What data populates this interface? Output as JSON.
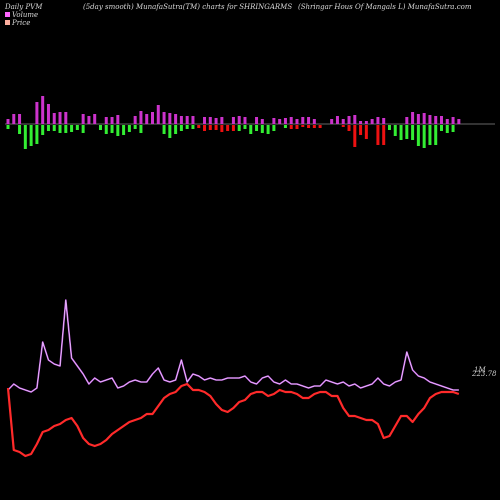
{
  "header": {
    "left": "Daily PVM",
    "middle": "(5day smooth) MunafaSutra(TM) charts for SHRINGARMS",
    "right": "(Shringar Hous  Of Mangals L) MunafaSutra.com"
  },
  "legend": [
    {
      "label": "Volume",
      "color": "#ff66ff"
    },
    {
      "label": "Price",
      "color": "#ffb0a0"
    }
  ],
  "colors": {
    "background": "#000000",
    "up_bar": "#cc33cc",
    "down_green": "#33ee33",
    "down_red": "#ee1111",
    "volume_line": "#cc66ee",
    "price_line": "#ff2a2a",
    "axis_line": "#888888"
  },
  "chart_data": [
    {
      "type": "bar",
      "name": "pvm-bars",
      "x": [
        1,
        2,
        3,
        4,
        5,
        6,
        7,
        8,
        9,
        10,
        11,
        12,
        13,
        14,
        15,
        16,
        17,
        18,
        19,
        20,
        21,
        22,
        23,
        24,
        25,
        26,
        27,
        28,
        29,
        30,
        31,
        32,
        33,
        34,
        35,
        36,
        37,
        38,
        39,
        40,
        41,
        42,
        43,
        44,
        45,
        46,
        47,
        48,
        49,
        50,
        51,
        52,
        53,
        54,
        55,
        56,
        57,
        58,
        59,
        60,
        61,
        62,
        63,
        64,
        65,
        66,
        67,
        68,
        69,
        70,
        71,
        72,
        73,
        74,
        75,
        76,
        77,
        78,
        79
      ],
      "up": [
        5,
        10,
        10,
        0,
        0,
        22,
        28,
        20,
        11,
        12,
        12,
        0,
        0,
        10,
        8,
        10,
        0,
        7,
        7,
        9,
        0,
        0,
        8,
        13,
        10,
        12,
        19,
        12,
        11,
        10,
        8,
        8,
        8,
        0,
        7,
        7,
        6,
        7,
        0,
        7,
        8,
        7,
        0,
        7,
        5,
        0,
        6,
        5,
        6,
        7,
        5,
        7,
        7,
        5,
        0,
        0,
        5,
        8,
        5,
        8,
        9,
        3,
        3,
        5,
        7,
        6,
        0,
        0,
        0,
        7,
        12,
        10,
        11,
        9,
        8,
        8,
        5,
        7,
        5
      ],
      "down": [
        4,
        0,
        9,
        24,
        21,
        19,
        10,
        6,
        6,
        8,
        8,
        7,
        5,
        8,
        0,
        0,
        5,
        9,
        8,
        11,
        10,
        7,
        4,
        8,
        0,
        0,
        0,
        9,
        13,
        9,
        6,
        4,
        4,
        3,
        6,
        5,
        5,
        7,
        6,
        6,
        6,
        4,
        9,
        6,
        8,
        9,
        6,
        0,
        3,
        4,
        4,
        2,
        3,
        3,
        3,
        0,
        0,
        0,
        2,
        6,
        22,
        10,
        14,
        0,
        20,
        20,
        5,
        11,
        15,
        14,
        15,
        21,
        23,
        20,
        20,
        6,
        8,
        7,
        0
      ],
      "down_color": [
        "green",
        "green",
        "green",
        "green",
        "green",
        "green",
        "green",
        "green",
        "green",
        "green",
        "green",
        "green",
        "green",
        "green",
        "green",
        "green",
        "green",
        "green",
        "green",
        "green",
        "green",
        "green",
        "green",
        "green",
        "green",
        "green",
        "green",
        "green",
        "green",
        "green",
        "green",
        "green",
        "green",
        "red",
        "red",
        "red",
        "red",
        "red",
        "red",
        "red",
        "green",
        "green",
        "green",
        "green",
        "green",
        "green",
        "green",
        "green",
        "green",
        "red",
        "red",
        "red",
        "red",
        "red",
        "red",
        "red",
        "red",
        "red",
        "red",
        "red",
        "red",
        "red",
        "red",
        "red",
        "red",
        "red",
        "green",
        "green",
        "green",
        "green",
        "green",
        "green",
        "green",
        "green",
        "green",
        "green",
        "green",
        "green",
        "green"
      ]
    },
    {
      "type": "line",
      "series": [
        {
          "name": "Volume",
          "x": [
            1,
            2,
            3,
            4,
            5,
            6,
            7,
            8,
            9,
            10,
            11,
            12,
            13,
            14,
            15,
            16,
            17,
            18,
            19,
            20,
            21,
            22,
            23,
            24,
            25,
            26,
            27,
            28,
            29,
            30,
            31,
            32,
            33,
            34,
            35,
            36,
            37,
            38,
            39,
            40,
            41,
            42,
            43,
            44,
            45,
            46,
            47,
            48,
            49,
            50,
            51,
            52,
            53,
            54,
            55,
            56,
            57,
            58,
            59,
            60,
            61,
            62,
            63,
            64,
            65,
            66,
            67,
            68,
            69,
            70,
            71,
            72,
            73,
            74,
            75,
            76,
            77,
            78,
            79
          ],
          "values": [
            0.4,
            0.43,
            0.41,
            0.4,
            0.39,
            0.41,
            0.64,
            0.55,
            0.53,
            0.52,
            0.85,
            0.56,
            0.52,
            0.48,
            0.43,
            0.46,
            0.44,
            0.45,
            0.46,
            0.41,
            0.42,
            0.44,
            0.45,
            0.44,
            0.44,
            0.48,
            0.51,
            0.45,
            0.44,
            0.45,
            0.55,
            0.44,
            0.48,
            0.47,
            0.45,
            0.46,
            0.45,
            0.45,
            0.46,
            0.46,
            0.46,
            0.47,
            0.44,
            0.43,
            0.46,
            0.47,
            0.44,
            0.43,
            0.45,
            0.43,
            0.43,
            0.42,
            0.41,
            0.42,
            0.42,
            0.45,
            0.44,
            0.43,
            0.44,
            0.42,
            0.43,
            0.41,
            0.42,
            0.43,
            0.46,
            0.43,
            0.42,
            0.44,
            0.45,
            0.59,
            0.5,
            0.47,
            0.46,
            0.44,
            0.43,
            0.42,
            0.41,
            0.4,
            0.4
          ]
        },
        {
          "name": "Price",
          "x": [
            1,
            2,
            3,
            4,
            5,
            6,
            7,
            8,
            9,
            10,
            11,
            12,
            13,
            14,
            15,
            16,
            17,
            18,
            19,
            20,
            21,
            22,
            23,
            24,
            25,
            26,
            27,
            28,
            29,
            30,
            31,
            32,
            33,
            34,
            35,
            36,
            37,
            38,
            39,
            40,
            41,
            42,
            43,
            44,
            45,
            46,
            47,
            48,
            49,
            50,
            51,
            52,
            53,
            54,
            55,
            56,
            57,
            58,
            59,
            60,
            61,
            62,
            63,
            64,
            65,
            66,
            67,
            68,
            69,
            70,
            71,
            72,
            73,
            74,
            75,
            76,
            77,
            78,
            79
          ],
          "values": [
            0.41,
            0.1,
            0.09,
            0.07,
            0.08,
            0.13,
            0.19,
            0.2,
            0.22,
            0.23,
            0.25,
            0.26,
            0.22,
            0.16,
            0.13,
            0.12,
            0.13,
            0.15,
            0.18,
            0.2,
            0.22,
            0.24,
            0.25,
            0.26,
            0.28,
            0.28,
            0.32,
            0.36,
            0.38,
            0.39,
            0.42,
            0.43,
            0.4,
            0.4,
            0.39,
            0.37,
            0.33,
            0.3,
            0.29,
            0.31,
            0.34,
            0.35,
            0.38,
            0.39,
            0.39,
            0.37,
            0.38,
            0.4,
            0.39,
            0.39,
            0.38,
            0.36,
            0.36,
            0.38,
            0.39,
            0.39,
            0.37,
            0.37,
            0.31,
            0.27,
            0.27,
            0.26,
            0.25,
            0.25,
            0.23,
            0.16,
            0.17,
            0.22,
            0.27,
            0.27,
            0.24,
            0.28,
            0.31,
            0.36,
            0.38,
            0.39,
            0.39,
            0.39,
            0.38
          ]
        }
      ],
      "annotations": [
        "1M",
        "223.78"
      ]
    }
  ]
}
